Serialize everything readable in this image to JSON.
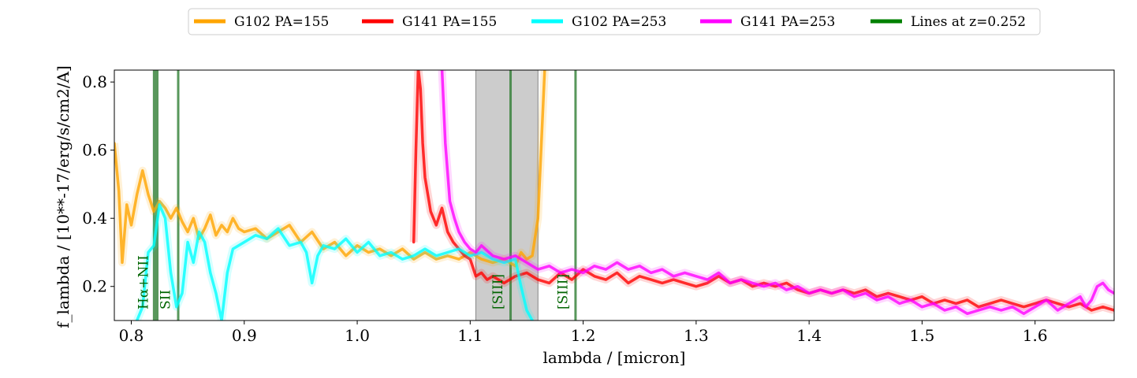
{
  "chart_data": {
    "type": "line",
    "xlabel": "lambda / [micron]",
    "ylabel": "f_lambda / [10**-17/erg/s/cm2/A]",
    "xlim": [
      0.785,
      1.67
    ],
    "ylim": [
      0.1,
      0.835
    ],
    "xticks": [
      0.8,
      0.9,
      1.0,
      1.1,
      1.2,
      1.3,
      1.4,
      1.5,
      1.6
    ],
    "xtick_labels": [
      "0.8",
      "0.9",
      "1.0",
      "1.1",
      "1.2",
      "1.3",
      "1.4",
      "1.5",
      "1.6"
    ],
    "yticks": [
      0.2,
      0.4,
      0.6,
      0.8
    ],
    "ytick_labels": [
      "0.2",
      "0.4",
      "0.6",
      "0.8"
    ],
    "grid": false,
    "legend_position": "top-center",
    "legend": [
      {
        "label": "G102 PA=155",
        "color": "#ffa500"
      },
      {
        "label": "G141 PA=155",
        "color": "#ff0000"
      },
      {
        "label": "G102 PA=253",
        "color": "#00ffff"
      },
      {
        "label": "G141 PA=253",
        "color": "#ff00ff"
      },
      {
        "label": "Lines at z=0.252",
        "color": "#008000"
      }
    ],
    "shaded_band": {
      "x0": 1.105,
      "x1": 1.16,
      "color": "#b0b0b0"
    },
    "emission_lines": [
      {
        "label": "Hα+NII",
        "x": 0.8216,
        "bar_width": 0.005
      },
      {
        "label": "SII",
        "x": 0.8413,
        "bar_width": 0.0016
      },
      {
        "label": "[SIII]",
        "x": 1.1355,
        "bar_width": 0.0016
      },
      {
        "label": "[SIII]",
        "x": 1.193,
        "bar_width": 0.0016
      }
    ],
    "series": [
      {
        "name": "G102 PA=155",
        "color": "#ffa500",
        "x": [
          0.785,
          0.789,
          0.792,
          0.796,
          0.8,
          0.805,
          0.81,
          0.815,
          0.82,
          0.825,
          0.83,
          0.835,
          0.84,
          0.845,
          0.85,
          0.855,
          0.86,
          0.865,
          0.87,
          0.875,
          0.88,
          0.885,
          0.89,
          0.895,
          0.9,
          0.91,
          0.92,
          0.93,
          0.94,
          0.95,
          0.96,
          0.97,
          0.98,
          0.99,
          1.0,
          1.01,
          1.02,
          1.03,
          1.04,
          1.05,
          1.06,
          1.07,
          1.08,
          1.09,
          1.1,
          1.11,
          1.12,
          1.13,
          1.14,
          1.145,
          1.15,
          1.155,
          1.16,
          1.163,
          1.166
        ],
        "y": [
          0.62,
          0.48,
          0.27,
          0.44,
          0.38,
          0.47,
          0.54,
          0.47,
          0.42,
          0.45,
          0.43,
          0.4,
          0.43,
          0.39,
          0.36,
          0.4,
          0.34,
          0.37,
          0.41,
          0.35,
          0.38,
          0.36,
          0.4,
          0.37,
          0.36,
          0.37,
          0.34,
          0.36,
          0.38,
          0.33,
          0.36,
          0.31,
          0.33,
          0.29,
          0.32,
          0.3,
          0.31,
          0.29,
          0.31,
          0.28,
          0.3,
          0.28,
          0.29,
          0.28,
          0.3,
          0.28,
          0.27,
          0.28,
          0.26,
          0.3,
          0.28,
          0.29,
          0.4,
          0.62,
          0.84
        ]
      },
      {
        "name": "G141 PA=155",
        "color": "#ff0000",
        "x": [
          1.05,
          1.052,
          1.054,
          1.056,
          1.058,
          1.06,
          1.065,
          1.07,
          1.075,
          1.08,
          1.085,
          1.09,
          1.095,
          1.1,
          1.105,
          1.11,
          1.115,
          1.12,
          1.13,
          1.14,
          1.15,
          1.16,
          1.17,
          1.18,
          1.19,
          1.2,
          1.21,
          1.22,
          1.23,
          1.24,
          1.25,
          1.26,
          1.27,
          1.28,
          1.29,
          1.3,
          1.31,
          1.32,
          1.33,
          1.34,
          1.35,
          1.36,
          1.37,
          1.38,
          1.39,
          1.4,
          1.41,
          1.42,
          1.43,
          1.44,
          1.45,
          1.46,
          1.47,
          1.48,
          1.49,
          1.5,
          1.51,
          1.52,
          1.53,
          1.54,
          1.55,
          1.56,
          1.57,
          1.58,
          1.59,
          1.6,
          1.61,
          1.62,
          1.63,
          1.64,
          1.65,
          1.66,
          1.67
        ],
        "y": [
          0.33,
          0.6,
          0.84,
          0.78,
          0.62,
          0.52,
          0.42,
          0.38,
          0.43,
          0.36,
          0.33,
          0.31,
          0.29,
          0.28,
          0.23,
          0.24,
          0.22,
          0.23,
          0.21,
          0.23,
          0.24,
          0.22,
          0.21,
          0.24,
          0.22,
          0.25,
          0.23,
          0.22,
          0.24,
          0.21,
          0.23,
          0.22,
          0.21,
          0.22,
          0.21,
          0.2,
          0.21,
          0.23,
          0.21,
          0.22,
          0.2,
          0.21,
          0.2,
          0.21,
          0.19,
          0.18,
          0.19,
          0.18,
          0.19,
          0.18,
          0.19,
          0.17,
          0.18,
          0.17,
          0.16,
          0.17,
          0.15,
          0.16,
          0.15,
          0.16,
          0.14,
          0.15,
          0.16,
          0.15,
          0.14,
          0.15,
          0.16,
          0.15,
          0.14,
          0.15,
          0.13,
          0.14,
          0.13
        ]
      },
      {
        "name": "G102 PA=253",
        "color": "#00ffff",
        "x": [
          0.805,
          0.81,
          0.815,
          0.82,
          0.825,
          0.83,
          0.835,
          0.84,
          0.845,
          0.85,
          0.855,
          0.86,
          0.865,
          0.87,
          0.875,
          0.88,
          0.885,
          0.89,
          0.9,
          0.91,
          0.92,
          0.93,
          0.94,
          0.95,
          0.955,
          0.96,
          0.965,
          0.97,
          0.98,
          0.99,
          1.0,
          1.01,
          1.02,
          1.03,
          1.04,
          1.05,
          1.06,
          1.07,
          1.08,
          1.09,
          1.1,
          1.11,
          1.12,
          1.13,
          1.14,
          1.145,
          1.15,
          1.155
        ],
        "y": [
          0.1,
          0.14,
          0.3,
          0.32,
          0.44,
          0.4,
          0.24,
          0.14,
          0.18,
          0.33,
          0.27,
          0.36,
          0.33,
          0.24,
          0.18,
          0.1,
          0.24,
          0.31,
          0.33,
          0.35,
          0.34,
          0.37,
          0.32,
          0.33,
          0.3,
          0.21,
          0.29,
          0.32,
          0.31,
          0.34,
          0.3,
          0.33,
          0.29,
          0.3,
          0.28,
          0.29,
          0.31,
          0.29,
          0.3,
          0.31,
          0.29,
          0.3,
          0.28,
          0.27,
          0.28,
          0.2,
          0.13,
          0.1
        ]
      },
      {
        "name": "G141 PA=253",
        "color": "#ff00ff",
        "x": [
          1.075,
          1.078,
          1.082,
          1.086,
          1.09,
          1.095,
          1.1,
          1.105,
          1.11,
          1.12,
          1.13,
          1.14,
          1.15,
          1.16,
          1.17,
          1.18,
          1.19,
          1.2,
          1.21,
          1.22,
          1.23,
          1.24,
          1.25,
          1.26,
          1.27,
          1.28,
          1.29,
          1.3,
          1.31,
          1.32,
          1.33,
          1.34,
          1.35,
          1.36,
          1.37,
          1.38,
          1.39,
          1.4,
          1.41,
          1.42,
          1.43,
          1.44,
          1.45,
          1.46,
          1.47,
          1.48,
          1.49,
          1.5,
          1.51,
          1.52,
          1.53,
          1.54,
          1.55,
          1.56,
          1.57,
          1.58,
          1.59,
          1.6,
          1.61,
          1.62,
          1.63,
          1.64,
          1.645,
          1.65,
          1.655,
          1.66,
          1.665,
          1.67
        ],
        "y": [
          0.84,
          0.62,
          0.45,
          0.4,
          0.36,
          0.33,
          0.31,
          0.3,
          0.32,
          0.29,
          0.28,
          0.29,
          0.27,
          0.25,
          0.26,
          0.24,
          0.25,
          0.24,
          0.26,
          0.25,
          0.27,
          0.25,
          0.26,
          0.24,
          0.25,
          0.23,
          0.24,
          0.23,
          0.22,
          0.24,
          0.21,
          0.22,
          0.21,
          0.2,
          0.21,
          0.19,
          0.2,
          0.18,
          0.19,
          0.18,
          0.19,
          0.17,
          0.18,
          0.16,
          0.17,
          0.15,
          0.16,
          0.14,
          0.15,
          0.13,
          0.14,
          0.12,
          0.13,
          0.14,
          0.13,
          0.14,
          0.12,
          0.14,
          0.16,
          0.13,
          0.15,
          0.17,
          0.14,
          0.16,
          0.2,
          0.21,
          0.19,
          0.18
        ]
      }
    ]
  }
}
